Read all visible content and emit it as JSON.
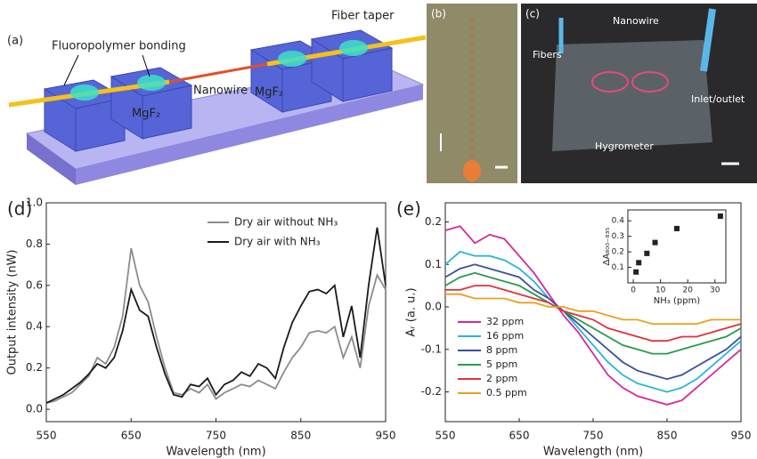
{
  "panels": {
    "a": {
      "label": "(a)",
      "bonding": "Fluoropolymer bonding",
      "taper": "Fiber taper",
      "nanowire": "Nanowire",
      "mgf_left": "MgF₂",
      "mgf_right": "MgF₂"
    },
    "b": {
      "label": "(b)"
    },
    "c": {
      "label": "(c)",
      "nanowire": "Nanowire",
      "fibers": "Fibers",
      "inlet": "Inlet/outlet",
      "hygrometer": "Hygrometer"
    }
  },
  "chart_data": [
    {
      "type": "line",
      "panel_label": "(d)",
      "x_label": "Wavelength (nm)",
      "y_label": "Output intensity (nW)",
      "x": [
        550,
        560,
        570,
        580,
        590,
        600,
        610,
        620,
        630,
        640,
        650,
        660,
        670,
        680,
        690,
        700,
        710,
        720,
        730,
        740,
        750,
        760,
        770,
        780,
        790,
        800,
        810,
        820,
        830,
        840,
        850,
        860,
        870,
        880,
        890,
        900,
        910,
        920,
        930,
        940,
        950
      ],
      "series": [
        {
          "name": "Dry air without NH₃",
          "color": "#8c8c8c",
          "values": [
            0.03,
            0.04,
            0.06,
            0.08,
            0.12,
            0.16,
            0.25,
            0.22,
            0.3,
            0.45,
            0.78,
            0.6,
            0.52,
            0.35,
            0.2,
            0.08,
            0.07,
            0.1,
            0.08,
            0.12,
            0.05,
            0.08,
            0.1,
            0.12,
            0.11,
            0.14,
            0.12,
            0.1,
            0.18,
            0.25,
            0.3,
            0.37,
            0.38,
            0.37,
            0.4,
            0.25,
            0.35,
            0.2,
            0.5,
            0.65,
            0.58
          ]
        },
        {
          "name": "Dry air with NH₃",
          "color": "#1a1a1a",
          "values": [
            0.03,
            0.05,
            0.07,
            0.1,
            0.13,
            0.17,
            0.22,
            0.2,
            0.25,
            0.38,
            0.58,
            0.48,
            0.45,
            0.3,
            0.17,
            0.07,
            0.06,
            0.12,
            0.11,
            0.15,
            0.07,
            0.12,
            0.14,
            0.18,
            0.16,
            0.22,
            0.2,
            0.15,
            0.3,
            0.42,
            0.5,
            0.57,
            0.58,
            0.56,
            0.6,
            0.35,
            0.5,
            0.25,
            0.6,
            0.88,
            0.6
          ]
        }
      ],
      "xlim": [
        550,
        950
      ],
      "xticks": [
        550,
        650,
        750,
        850,
        950
      ],
      "ylim": [
        -0.06,
        1.0
      ],
      "yticks": [
        {
          "value": 0,
          "label": "0.0"
        },
        {
          "value": 0.2,
          "label": "0.2"
        },
        {
          "value": 0.4,
          "label": "0.4"
        },
        {
          "value": 0.6,
          "label": "0.6"
        },
        {
          "value": 0.8,
          "label": "0.8"
        },
        {
          "value": 1.0,
          "label": "1.0"
        }
      ],
      "legend": "upper right"
    },
    {
      "type": "line",
      "panel_label": "(e)",
      "x_label": "Wavelength (nm)",
      "y_label": "Aᵣ (a. u.)",
      "x": [
        550,
        570,
        590,
        610,
        630,
        650,
        670,
        690,
        710,
        730,
        750,
        770,
        790,
        810,
        830,
        850,
        870,
        890,
        910,
        930,
        950
      ],
      "series": [
        {
          "name": "32 ppm",
          "color": "#d6289e",
          "values": [
            0.18,
            0.19,
            0.15,
            0.17,
            0.16,
            0.12,
            0.08,
            0.03,
            -0.02,
            -0.06,
            -0.11,
            -0.16,
            -0.19,
            -0.21,
            -0.22,
            -0.23,
            -0.22,
            -0.19,
            -0.16,
            -0.13,
            -0.1
          ]
        },
        {
          "name": "16 ppm",
          "color": "#29b6d6",
          "values": [
            0.1,
            0.13,
            0.12,
            0.12,
            0.11,
            0.09,
            0.06,
            0.02,
            -0.01,
            -0.05,
            -0.09,
            -0.13,
            -0.16,
            -0.18,
            -0.19,
            -0.2,
            -0.19,
            -0.17,
            -0.14,
            -0.11,
            -0.08
          ]
        },
        {
          "name": "8 ppm",
          "color": "#3a4fa0",
          "values": [
            0.07,
            0.09,
            0.1,
            0.09,
            0.08,
            0.07,
            0.04,
            0.02,
            -0.01,
            -0.04,
            -0.07,
            -0.1,
            -0.13,
            -0.15,
            -0.16,
            -0.17,
            -0.16,
            -0.14,
            -0.12,
            -0.1,
            -0.07
          ]
        },
        {
          "name": "5 ppm",
          "color": "#2a9a4a",
          "values": [
            0.05,
            0.07,
            0.08,
            0.07,
            0.06,
            0.05,
            0.03,
            0.01,
            -0.01,
            -0.03,
            -0.05,
            -0.07,
            -0.09,
            -0.1,
            -0.11,
            -0.11,
            -0.1,
            -0.09,
            -0.08,
            -0.07,
            -0.05
          ]
        },
        {
          "name": "2 ppm",
          "color": "#e0303a",
          "values": [
            0.04,
            0.04,
            0.05,
            0.05,
            0.04,
            0.03,
            0.02,
            0.01,
            -0.01,
            -0.02,
            -0.03,
            -0.05,
            -0.06,
            -0.07,
            -0.08,
            -0.08,
            -0.07,
            -0.07,
            -0.06,
            -0.05,
            -0.04
          ]
        },
        {
          "name": "0.5 ppm",
          "color": "#e8a020",
          "values": [
            0.03,
            0.03,
            0.02,
            0.02,
            0.02,
            0.01,
            0.01,
            0.0,
            0.0,
            -0.01,
            -0.01,
            -0.02,
            -0.03,
            -0.03,
            -0.04,
            -0.04,
            -0.04,
            -0.04,
            -0.03,
            -0.03,
            -0.03
          ]
        }
      ],
      "xlim": [
        550,
        950
      ],
      "xticks": [
        550,
        650,
        750,
        850,
        950
      ],
      "ylim": [
        -0.27,
        0.245
      ],
      "yticks": [
        {
          "value": -0.2,
          "label": "-0.2"
        },
        {
          "value": -0.1,
          "label": "-0.1"
        },
        {
          "value": 0,
          "label": "0.0"
        },
        {
          "value": 0.1,
          "label": "0.1"
        },
        {
          "value": 0.2,
          "label": "0.2"
        }
      ],
      "legend": "lower left",
      "inset": {
        "type": "scatter",
        "x_label": "NH₃ (ppm)",
        "y_label": "ΔA₈₀₀₋₈₃₅",
        "color": "#222222",
        "x": [
          1,
          2,
          5,
          8,
          16,
          32
        ],
        "values": [
          0.07,
          0.13,
          0.19,
          0.26,
          0.35,
          0.43
        ],
        "xlim": [
          -2,
          34
        ],
        "xticks": [
          0,
          10,
          20,
          30
        ],
        "ylim": [
          0,
          0.47
        ],
        "yticks": [
          {
            "value": 0.1,
            "label": "0.1"
          },
          {
            "value": 0.2,
            "label": "0.2"
          },
          {
            "value": 0.3,
            "label": "0.3"
          },
          {
            "value": 0.4,
            "label": "0.4"
          }
        ]
      }
    }
  ]
}
